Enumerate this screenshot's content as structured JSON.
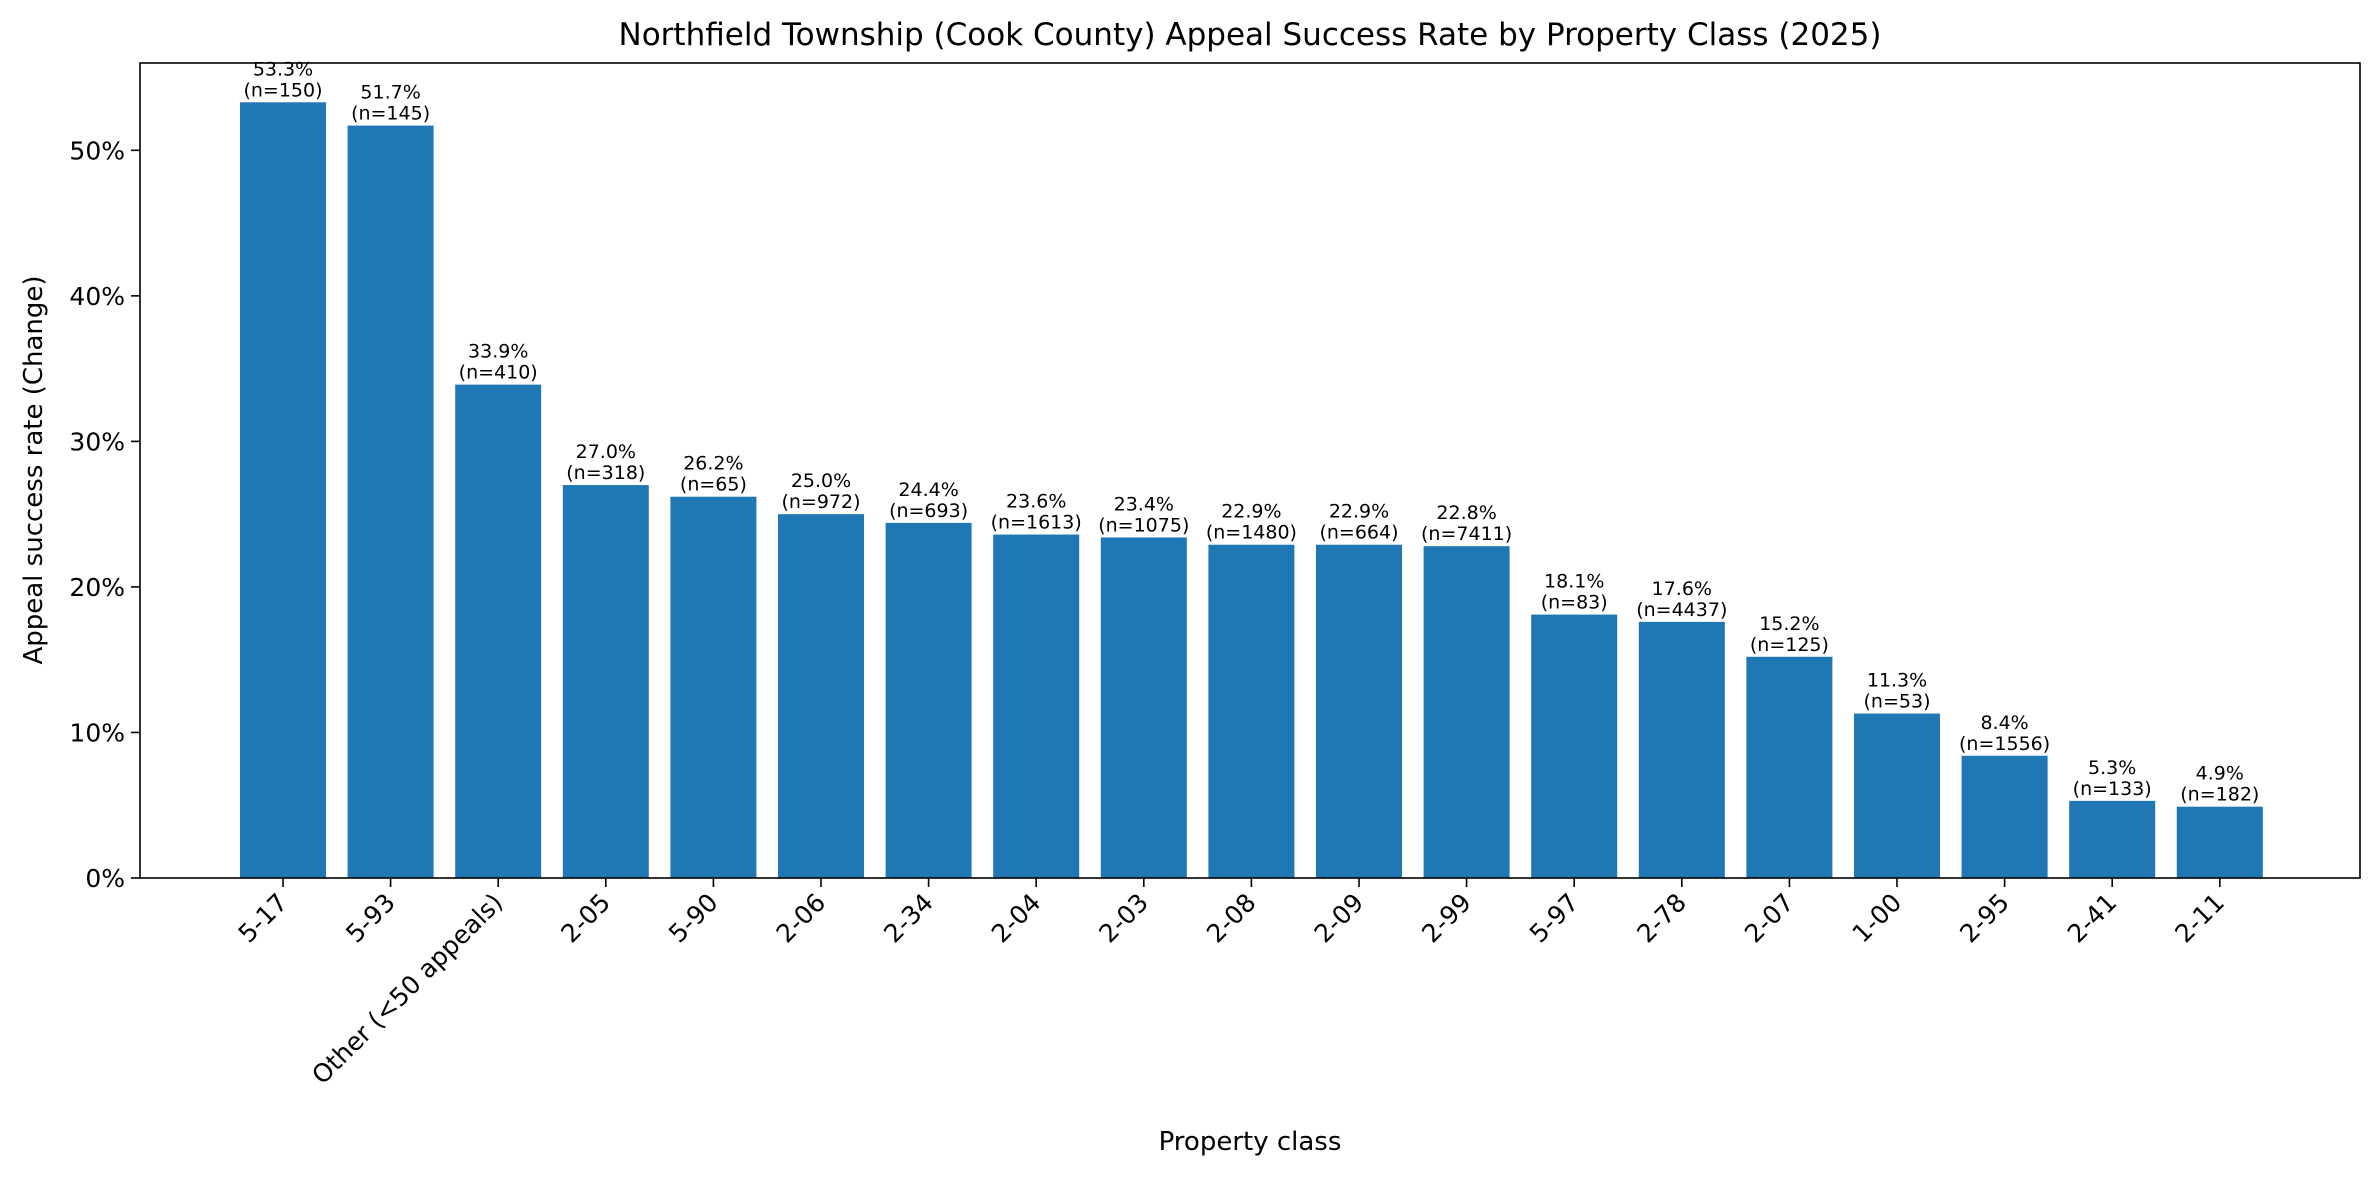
{
  "chart_data": {
    "type": "bar",
    "title": "Northfield Township (Cook County) Appeal Success Rate by Property Class (2025)",
    "xlabel": "Property class",
    "ylabel": "Appeal success rate (Change)",
    "ylim": [
      0,
      56
    ],
    "ytick_values": [
      0,
      10,
      20,
      30,
      40,
      50
    ],
    "ytick_labels": [
      "0%",
      "10%",
      "20%",
      "30%",
      "40%",
      "50%"
    ],
    "bar_color": "#1f77b4",
    "categories": [
      "5-17",
      "5-93",
      "Other (<50 appeals)",
      "2-05",
      "5-90",
      "2-06",
      "2-34",
      "2-04",
      "2-03",
      "2-08",
      "2-09",
      "2-99",
      "5-97",
      "2-78",
      "2-07",
      "1-00",
      "2-95",
      "2-41",
      "2-11"
    ],
    "values": [
      53.3,
      51.7,
      33.9,
      27.0,
      26.2,
      25.0,
      24.4,
      23.6,
      23.4,
      22.9,
      22.9,
      22.8,
      18.1,
      17.6,
      15.2,
      11.3,
      8.4,
      5.3,
      4.9
    ],
    "percent_labels": [
      "53.3%",
      "51.7%",
      "33.9%",
      "27.0%",
      "26.2%",
      "25.0%",
      "24.4%",
      "23.6%",
      "23.4%",
      "22.9%",
      "22.9%",
      "22.8%",
      "18.1%",
      "17.6%",
      "15.2%",
      "11.3%",
      "8.4%",
      "5.3%",
      "4.9%"
    ],
    "count_labels": [
      "(n=150)",
      "(n=145)",
      "(n=410)",
      "(n=318)",
      "(n=65)",
      "(n=972)",
      "(n=693)",
      "(n=1613)",
      "(n=1075)",
      "(n=1480)",
      "(n=664)",
      "(n=7411)",
      "(n=83)",
      "(n=4437)",
      "(n=125)",
      "(n=53)",
      "(n=1556)",
      "(n=133)",
      "(n=182)"
    ]
  }
}
